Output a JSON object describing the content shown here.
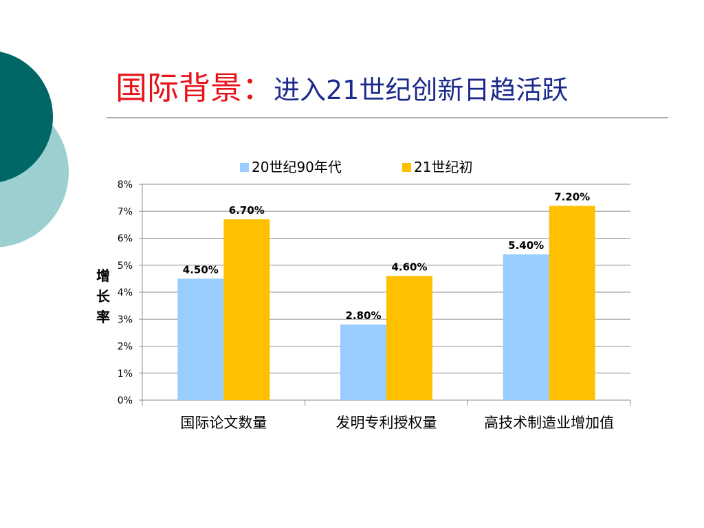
{
  "slide": {
    "title_main": "国际背景：",
    "title_sub": "进入21世纪创新日趋活跃"
  },
  "colors": {
    "title_red": "#e8141c",
    "title_blue": "#1c2a8c",
    "decor_dark_teal": "#006666",
    "decor_light_teal": "#9ccfcf",
    "series_20c": "#99ccff",
    "series_21c": "#ffc000"
  },
  "chart_data": {
    "type": "bar",
    "title": "",
    "xlabel": "",
    "ylabel": "增长率",
    "ylabel_chars": [
      "增",
      "长",
      "率"
    ],
    "categories": [
      "国际论文数量",
      "发明专利授权量",
      "高技术制造业增加值"
    ],
    "series": [
      {
        "name": "20世纪90年代",
        "values": [
          4.5,
          2.8,
          5.4
        ],
        "labels": [
          "4.50%",
          "2.80%",
          "5.40%"
        ],
        "color": "#99ccff"
      },
      {
        "name": "21世纪初",
        "values": [
          6.7,
          4.6,
          7.2
        ],
        "labels": [
          "6.70%",
          "4.60%",
          "7.20%"
        ],
        "color": "#ffc000"
      }
    ],
    "ylim": [
      0,
      8
    ],
    "yticks": [
      0,
      1,
      2,
      3,
      4,
      5,
      6,
      7,
      8
    ],
    "ytick_labels": [
      "0%",
      "1%",
      "2%",
      "3%",
      "4%",
      "5%",
      "6%",
      "7%",
      "8%"
    ],
    "grid": true,
    "legend": "top"
  }
}
